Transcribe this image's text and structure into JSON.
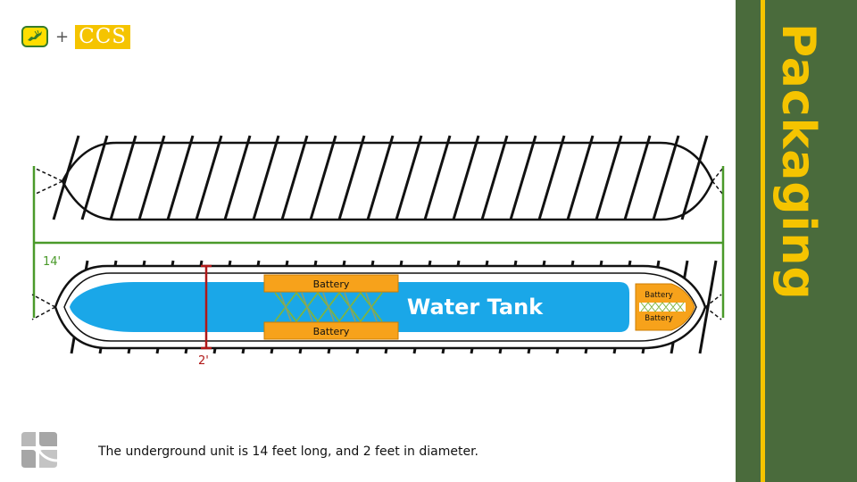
{
  "logos": {
    "ccs": "CCS",
    "plus": "+"
  },
  "side_title": "Packaging",
  "diagram": {
    "length_label": "14'",
    "diameter_label": "2'",
    "battery_top": "Battery",
    "battery_bottom": "Battery",
    "tank_label": "Water Tank",
    "nose_battery_top": "Battery",
    "nose_battery_bottom": "Battery"
  },
  "caption": "The underground unit is 14 feet long, and 2 feet in diameter.",
  "colors": {
    "water": "#1aa7e8",
    "battery": "#f7a21b",
    "dimension_green": "#4a9a2a",
    "dimension_red": "#b01818",
    "panel_green": "#4a6b3c",
    "panel_yellow": "#f5c400"
  }
}
